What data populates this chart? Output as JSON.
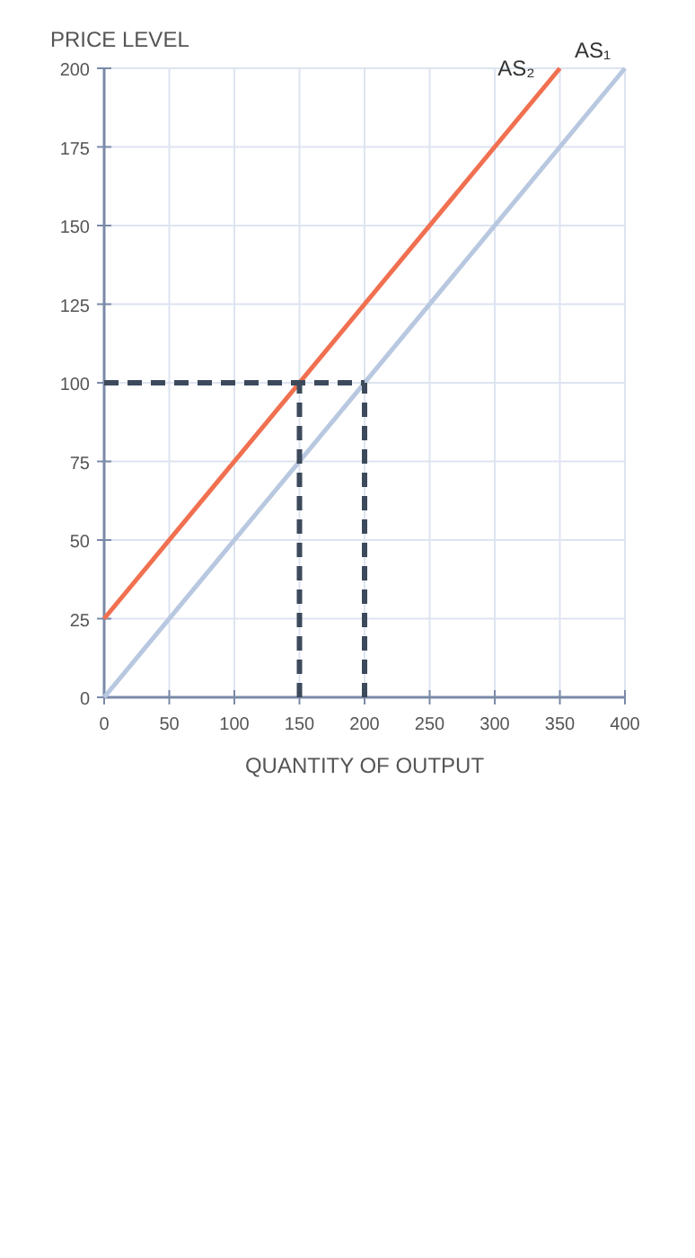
{
  "chart_data": {
    "type": "line",
    "xlabel": "QUANTITY OF OUTPUT",
    "ylabel": "PRICE LEVEL",
    "xlim": [
      0,
      400
    ],
    "xticks": [
      0,
      50,
      100,
      150,
      200,
      250,
      300,
      350,
      400
    ],
    "ylim": [
      0,
      200
    ],
    "yticks": [
      0,
      25,
      50,
      75,
      100,
      125,
      150,
      175,
      200
    ],
    "grid": true,
    "marker": "none",
    "series": [
      {
        "name": "AS₁",
        "color": "#b8c8e0",
        "x": [
          0,
          400
        ],
        "values": [
          0,
          200
        ],
        "line_style": "solid"
      },
      {
        "name": "AS₂",
        "color": "#f07050",
        "x": [
          0,
          350
        ],
        "values": [
          25,
          200
        ],
        "line_style": "solid"
      },
      {
        "color": "#3d4a5c",
        "x": [
          0,
          200
        ],
        "values": [
          100,
          100
        ],
        "line_style": "dashed"
      },
      {
        "color": "#3d4a5c",
        "x": [
          150,
          150
        ],
        "values": [
          0,
          100
        ],
        "line_style": "dashed"
      },
      {
        "color": "#3d4a5c",
        "x": [
          200,
          200
        ],
        "values": [
          0,
          100
        ],
        "line_style": "dashed"
      }
    ]
  }
}
